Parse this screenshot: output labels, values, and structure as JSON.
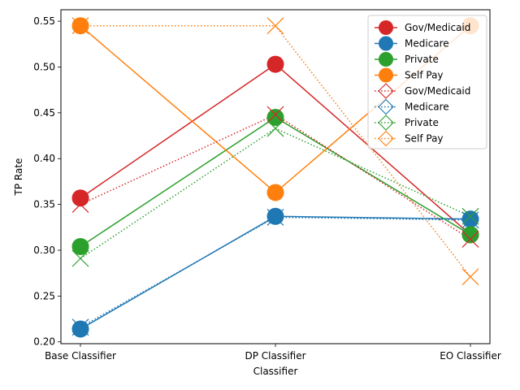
{
  "chart_data": {
    "type": "line",
    "xlabel": "Classifier",
    "ylabel": "TP Rate",
    "categories": [
      "Base Classifier",
      "DP Classifier",
      "EO Classifier"
    ],
    "ylim": [
      0.198,
      0.5625
    ],
    "yticks": [
      0.2,
      0.25,
      0.3,
      0.35,
      0.4,
      0.45,
      0.5,
      0.55
    ],
    "ytick_labels": [
      "0.20",
      "0.25",
      "0.30",
      "0.35",
      "0.40",
      "0.45",
      "0.50",
      "0.55"
    ],
    "grid": false,
    "legend_position": "upper right",
    "series": [
      {
        "name": "Gov/Medicaid",
        "color": "#d62728",
        "style": "solid",
        "marker": "circle",
        "values": [
          0.357,
          0.503,
          0.317
        ]
      },
      {
        "name": "Medicare",
        "color": "#1f77b4",
        "style": "solid",
        "marker": "circle",
        "values": [
          0.214,
          0.337,
          0.334
        ]
      },
      {
        "name": "Private",
        "color": "#2ca02c",
        "style": "solid",
        "marker": "circle",
        "values": [
          0.304,
          0.445,
          0.317
        ]
      },
      {
        "name": "Self Pay",
        "color": "#ff7f0e",
        "style": "solid",
        "marker": "circle",
        "values": [
          0.545,
          0.363,
          0.545
        ]
      },
      {
        "name": "Gov/Medicaid",
        "color": "#d62728",
        "style": "dotted",
        "marker": "x",
        "values": [
          0.35,
          0.448,
          0.312
        ]
      },
      {
        "name": "Medicare",
        "color": "#1f77b4",
        "style": "dotted",
        "marker": "x",
        "values": [
          0.216,
          0.336,
          0.333
        ]
      },
      {
        "name": "Private",
        "color": "#2ca02c",
        "style": "dotted",
        "marker": "x",
        "values": [
          0.291,
          0.433,
          0.337
        ]
      },
      {
        "name": "Self Pay",
        "color": "#ff7f0e",
        "style": "dotted",
        "marker": "x",
        "values": [
          0.545,
          0.545,
          0.271
        ]
      }
    ]
  }
}
